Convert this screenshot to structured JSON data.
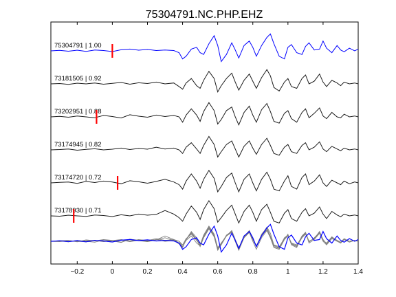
{
  "chart_data": {
    "type": "line",
    "title": "75304791.NC.PHP.EHZ",
    "xlabel": "",
    "ylabel": "",
    "xlim": [
      -0.35,
      1.4
    ],
    "xticks": [
      -0.2,
      0,
      0.2,
      0.4,
      0.6,
      0.8,
      1,
      1.2,
      1.4
    ],
    "xtick_labels": [
      "−0.2",
      "0",
      "0.2",
      "0.4",
      "0.6",
      "0.8",
      "1",
      "1.2",
      "1.4"
    ],
    "grid": false,
    "colors": {
      "master": "#0000ff",
      "trace": "#1a1a1a",
      "stack": "#808080",
      "pick": "#ff0000"
    },
    "series": [
      {
        "name": "75304791 | 1.00",
        "id": "75304791",
        "cc": "1.00",
        "color": "#0000ff",
        "pick": 0.0,
        "x": [
          -0.35,
          -0.3,
          -0.25,
          -0.2,
          -0.15,
          -0.1,
          -0.05,
          0,
          0.05,
          0.1,
          0.15,
          0.2,
          0.25,
          0.3,
          0.35,
          0.38,
          0.4,
          0.42,
          0.45,
          0.48,
          0.5,
          0.52,
          0.55,
          0.58,
          0.6,
          0.62,
          0.65,
          0.68,
          0.7,
          0.72,
          0.75,
          0.78,
          0.8,
          0.82,
          0.85,
          0.88,
          0.9,
          0.92,
          0.95,
          0.98,
          1.0,
          1.02,
          1.05,
          1.08,
          1.1,
          1.12,
          1.15,
          1.18,
          1.2,
          1.22,
          1.25,
          1.28,
          1.3,
          1.32,
          1.35,
          1.38,
          1.4
        ],
        "y": [
          0,
          0.03,
          -0.02,
          0.04,
          -0.03,
          0.05,
          0.02,
          -0.04,
          0.06,
          0.1,
          0.04,
          0.08,
          0.02,
          0.05,
          0.02,
          -0.1,
          -0.45,
          -0.3,
          0.1,
          0.2,
          -0.1,
          -0.2,
          0.4,
          0.85,
          0.3,
          -0.6,
          -0.2,
          0.45,
          0.05,
          -0.4,
          0.3,
          0.55,
          0.2,
          -0.3,
          0.3,
          0.75,
          0.95,
          0.4,
          -0.3,
          -0.45,
          0.2,
          0.35,
          -0.1,
          -0.2,
          0.25,
          0.45,
          0.05,
          0.1,
          0.55,
          0.15,
          -0.1,
          0.3,
          0.05,
          -0.05,
          0.15,
          0.0,
          0.1
        ]
      },
      {
        "name": "73181505 | 0.92",
        "id": "73181505",
        "cc": "0.92",
        "color": "#1a1a1a",
        "pick": null,
        "x": [
          -0.35,
          -0.3,
          -0.25,
          -0.2,
          -0.15,
          -0.1,
          -0.05,
          0,
          0.05,
          0.1,
          0.15,
          0.2,
          0.25,
          0.3,
          0.35,
          0.38,
          0.4,
          0.42,
          0.45,
          0.48,
          0.5,
          0.52,
          0.55,
          0.58,
          0.6,
          0.62,
          0.65,
          0.68,
          0.7,
          0.72,
          0.75,
          0.78,
          0.8,
          0.82,
          0.85,
          0.88,
          0.9,
          0.92,
          0.95,
          0.98,
          1.0,
          1.02,
          1.05,
          1.08,
          1.1,
          1.12,
          1.15,
          1.18,
          1.2,
          1.22,
          1.25,
          1.28,
          1.3,
          1.32,
          1.35,
          1.38,
          1.4
        ],
        "y": [
          0,
          0.02,
          -0.03,
          0.04,
          0.0,
          0.05,
          -0.02,
          0.03,
          0.08,
          -0.02,
          0.06,
          0.02,
          0.1,
          0.0,
          0.05,
          -0.15,
          -0.3,
          0.05,
          0.3,
          -0.1,
          -0.25,
          0.2,
          0.7,
          0.3,
          -0.45,
          -0.1,
          0.3,
          0.6,
          0.1,
          -0.35,
          0.2,
          0.55,
          0.15,
          -0.25,
          0.35,
          0.8,
          0.45,
          -0.2,
          -0.4,
          0.1,
          0.3,
          -0.15,
          -0.25,
          0.3,
          0.5,
          0.0,
          0.15,
          0.55,
          0.1,
          -0.15,
          0.2,
          0.05,
          -0.1,
          0.1,
          0.0,
          0.05,
          0.0
        ]
      },
      {
        "name": "73202951 | 0.88",
        "id": "73202951",
        "cc": "0.88",
        "color": "#1a1a1a",
        "pick": -0.09,
        "x": [
          -0.35,
          -0.3,
          -0.25,
          -0.2,
          -0.15,
          -0.1,
          -0.05,
          0,
          0.05,
          0.1,
          0.15,
          0.2,
          0.25,
          0.3,
          0.35,
          0.38,
          0.4,
          0.42,
          0.45,
          0.48,
          0.5,
          0.52,
          0.55,
          0.58,
          0.6,
          0.62,
          0.65,
          0.68,
          0.7,
          0.72,
          0.75,
          0.78,
          0.8,
          0.82,
          0.85,
          0.88,
          0.9,
          0.92,
          0.95,
          0.98,
          1.0,
          1.02,
          1.05,
          1.08,
          1.1,
          1.12,
          1.15,
          1.18,
          1.2,
          1.22,
          1.25,
          1.28,
          1.3,
          1.32,
          1.35,
          1.38,
          1.4
        ],
        "y": [
          0,
          0.03,
          -0.02,
          0.05,
          0.0,
          -0.05,
          0.08,
          0.02,
          -0.06,
          0.12,
          0.04,
          -0.02,
          0.1,
          0.02,
          0.08,
          0.0,
          -0.3,
          0.1,
          0.45,
          0.1,
          -0.25,
          0.3,
          0.8,
          0.35,
          -0.4,
          -0.15,
          0.35,
          0.55,
          0.0,
          -0.45,
          0.25,
          0.6,
          0.1,
          -0.3,
          0.4,
          0.75,
          0.3,
          -0.25,
          -0.35,
          0.2,
          0.35,
          -0.1,
          -0.3,
          0.25,
          0.45,
          -0.05,
          0.2,
          0.5,
          0.05,
          -0.1,
          0.25,
          0.0,
          -0.05,
          0.15,
          0.0,
          0.05,
          0.0
        ]
      },
      {
        "name": "73174945 | 0.82",
        "id": "73174945",
        "cc": "0.82",
        "color": "#1a1a1a",
        "pick": null,
        "x": [
          -0.35,
          -0.3,
          -0.25,
          -0.2,
          -0.15,
          -0.1,
          -0.05,
          0,
          0.05,
          0.1,
          0.15,
          0.2,
          0.25,
          0.3,
          0.35,
          0.38,
          0.4,
          0.42,
          0.45,
          0.48,
          0.5,
          0.52,
          0.55,
          0.58,
          0.6,
          0.62,
          0.65,
          0.68,
          0.7,
          0.72,
          0.75,
          0.78,
          0.8,
          0.82,
          0.85,
          0.88,
          0.9,
          0.92,
          0.95,
          0.98,
          1.0,
          1.02,
          1.05,
          1.08,
          1.1,
          1.12,
          1.15,
          1.18,
          1.2,
          1.22,
          1.25,
          1.28,
          1.3,
          1.32,
          1.35,
          1.38,
          1.4
        ],
        "y": [
          0,
          0.02,
          0.05,
          -0.02,
          0.03,
          0.06,
          0.0,
          0.04,
          0.1,
          0.02,
          0.08,
          0.04,
          0.15,
          0.05,
          0.1,
          0.0,
          -0.2,
          0.15,
          0.4,
          0.05,
          -0.2,
          0.25,
          0.75,
          0.3,
          -0.4,
          -0.1,
          0.3,
          0.5,
          0.05,
          -0.4,
          0.2,
          0.5,
          0.1,
          -0.25,
          0.3,
          0.65,
          0.25,
          -0.2,
          -0.3,
          0.15,
          0.3,
          -0.1,
          -0.2,
          0.25,
          0.4,
          0.0,
          0.15,
          0.45,
          0.05,
          -0.1,
          0.2,
          0.05,
          -0.05,
          0.1,
          0.0,
          0.05,
          0.0
        ]
      },
      {
        "name": "73174720 | 0.72",
        "id": "73174720",
        "cc": "0.72",
        "color": "#1a1a1a",
        "pick": 0.03,
        "x": [
          -0.35,
          -0.3,
          -0.25,
          -0.2,
          -0.15,
          -0.1,
          -0.05,
          0,
          0.05,
          0.1,
          0.15,
          0.2,
          0.25,
          0.3,
          0.35,
          0.38,
          0.4,
          0.42,
          0.45,
          0.48,
          0.5,
          0.52,
          0.55,
          0.58,
          0.6,
          0.62,
          0.65,
          0.68,
          0.7,
          0.72,
          0.75,
          0.78,
          0.8,
          0.82,
          0.85,
          0.88,
          0.9,
          0.92,
          0.95,
          0.98,
          1.0,
          1.02,
          1.05,
          1.08,
          1.1,
          1.12,
          1.15,
          1.18,
          1.2,
          1.22,
          1.25,
          1.28,
          1.3,
          1.32,
          1.35,
          1.38,
          1.4
        ],
        "y": [
          0,
          0.03,
          0.05,
          -0.03,
          0.08,
          0.02,
          0.1,
          0.05,
          -0.05,
          0.12,
          0.06,
          -0.02,
          0.08,
          0.2,
          0.05,
          -0.1,
          -0.35,
          0.1,
          0.5,
          0.1,
          -0.3,
          0.2,
          0.7,
          0.25,
          -0.5,
          -0.2,
          0.3,
          0.55,
          0.0,
          -0.5,
          0.2,
          0.5,
          0.0,
          -0.45,
          0.2,
          0.6,
          0.2,
          -0.35,
          -0.45,
          0.1,
          0.4,
          -0.2,
          -0.35,
          0.3,
          0.5,
          -0.1,
          0.1,
          0.45,
          0.0,
          -0.2,
          0.15,
          0.0,
          -0.1,
          0.1,
          -0.05,
          0.05,
          0.0
        ]
      },
      {
        "name": "73178930 | 0.71",
        "id": "73178930",
        "cc": "0.71",
        "color": "#1a1a1a",
        "pick": -0.22,
        "x": [
          -0.35,
          -0.3,
          -0.25,
          -0.2,
          -0.15,
          -0.1,
          -0.05,
          0,
          0.05,
          0.1,
          0.15,
          0.2,
          0.25,
          0.3,
          0.35,
          0.38,
          0.4,
          0.42,
          0.45,
          0.48,
          0.5,
          0.52,
          0.55,
          0.58,
          0.6,
          0.62,
          0.65,
          0.68,
          0.7,
          0.72,
          0.75,
          0.78,
          0.8,
          0.82,
          0.85,
          0.88,
          0.9,
          0.92,
          0.95,
          0.98,
          1.0,
          1.02,
          1.05,
          1.08,
          1.1,
          1.12,
          1.15,
          1.18,
          1.2,
          1.22,
          1.25,
          1.28,
          1.3,
          1.32,
          1.35,
          1.38,
          1.4
        ],
        "y": [
          0,
          -0.02,
          0.04,
          0.0,
          -0.03,
          0.05,
          0.02,
          -0.04,
          0.06,
          0.0,
          0.1,
          0.04,
          0.08,
          0.3,
          0.1,
          -0.1,
          -0.3,
          0.1,
          0.55,
          0.2,
          -0.2,
          0.35,
          0.85,
          0.4,
          -0.35,
          -0.1,
          0.3,
          0.6,
          0.1,
          -0.4,
          0.25,
          0.6,
          0.2,
          -0.3,
          0.35,
          0.65,
          0.2,
          -0.3,
          -0.4,
          0.15,
          0.35,
          -0.15,
          -0.3,
          0.2,
          0.4,
          0.0,
          0.15,
          0.5,
          0.1,
          -0.15,
          0.25,
          0.05,
          -0.05,
          0.1,
          0.0,
          0.05,
          0.0
        ]
      }
    ]
  }
}
